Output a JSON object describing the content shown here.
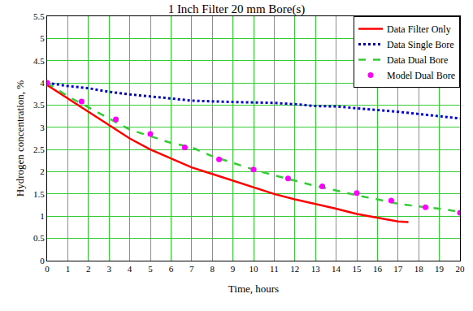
{
  "chart_data": {
    "type": "line",
    "title": "1 Inch Filter 20 mm Bore(s)",
    "x_label": "Time, hours",
    "y_label": "Hydrogen concentration, %",
    "xlim": [
      0,
      20
    ],
    "xticks": [
      0,
      1,
      2,
      3,
      4,
      5,
      6,
      7,
      8,
      9,
      10,
      11,
      12,
      13,
      14,
      15,
      16,
      17,
      18,
      19,
      20
    ],
    "ylim": [
      0,
      5.5
    ],
    "yticks": [
      0,
      0.5,
      1,
      1.5,
      2,
      2.5,
      3,
      3.5,
      4,
      4.5,
      5,
      5.5
    ],
    "grid": true,
    "legend": "top right",
    "series": [
      {
        "name": "Data Filter Only",
        "type": "line",
        "color": "#ff0000",
        "line_style": "solid",
        "x": [
          0,
          1,
          2,
          3,
          4,
          5,
          6,
          7,
          8,
          9,
          10,
          11,
          12,
          13,
          14,
          15,
          16,
          17,
          17.5
        ],
        "values": [
          3.95,
          3.65,
          3.35,
          3.05,
          2.75,
          2.5,
          2.3,
          2.1,
          1.95,
          1.8,
          1.65,
          1.5,
          1.38,
          1.28,
          1.17,
          1.05,
          0.97,
          0.88,
          0.87
        ]
      },
      {
        "name": "Data Single Bore",
        "type": "line",
        "color": "#0000cc",
        "line_style": "dot",
        "x": [
          0,
          1,
          2,
          3,
          4,
          5,
          6,
          7,
          8,
          9,
          10,
          11,
          12,
          13,
          14,
          15,
          16,
          17,
          18,
          19,
          20
        ],
        "values": [
          4.0,
          3.93,
          3.88,
          3.8,
          3.74,
          3.7,
          3.65,
          3.6,
          3.58,
          3.57,
          3.56,
          3.55,
          3.52,
          3.48,
          3.47,
          3.43,
          3.4,
          3.35,
          3.3,
          3.25,
          3.2
        ]
      },
      {
        "name": "Data Dual Bore",
        "type": "line",
        "color": "#33cc33",
        "line_style": "dash",
        "x": [
          0,
          1,
          2,
          3,
          4,
          5,
          6,
          7,
          8,
          9,
          10,
          11,
          12,
          13,
          14,
          15,
          16,
          17,
          18,
          19,
          20
        ],
        "values": [
          4.0,
          3.7,
          3.45,
          3.2,
          2.95,
          2.8,
          2.65,
          2.55,
          2.35,
          2.2,
          2.05,
          1.92,
          1.8,
          1.68,
          1.58,
          1.47,
          1.38,
          1.28,
          1.22,
          1.17,
          1.1
        ]
      },
      {
        "name": "Model Dual Bore",
        "type": "scatter",
        "color": "#ff00ff",
        "marker": "circle",
        "x": [
          0,
          1.67,
          3.33,
          5,
          6.67,
          8.33,
          10,
          11.67,
          13.33,
          15,
          16.67,
          18.33,
          20
        ],
        "values": [
          4.0,
          3.58,
          3.18,
          2.85,
          2.55,
          2.28,
          2.05,
          1.85,
          1.67,
          1.52,
          1.35,
          1.2,
          1.08
        ]
      }
    ]
  }
}
